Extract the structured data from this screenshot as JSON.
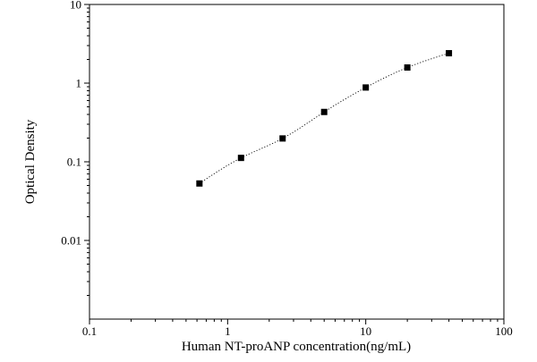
{
  "chart_data": {
    "type": "scatter",
    "title": "",
    "xlabel": "Human NT-proANP concentration(ng/mL)",
    "ylabel": "Optical Density",
    "x_scale": "log",
    "y_scale": "log",
    "xlim": [
      0.1,
      100
    ],
    "ylim": [
      0.001,
      10
    ],
    "x_ticks": [
      {
        "value": 0.1,
        "label": "0.1"
      },
      {
        "value": 1,
        "label": "1"
      },
      {
        "value": 10,
        "label": "10"
      },
      {
        "value": 100,
        "label": "100"
      }
    ],
    "y_ticks": [
      {
        "value": 10,
        "label": "10"
      },
      {
        "value": 1,
        "label": "1"
      },
      {
        "value": 0.1,
        "label": "0.1"
      },
      {
        "value": 0.01,
        "label": "0.01"
      }
    ],
    "grid": false,
    "legend": "none",
    "marker_color": "#000000",
    "fit_line": "dotted curve",
    "series": [
      {
        "x": [
          0.625,
          1.25,
          2.5,
          5,
          10,
          20,
          40
        ],
        "y": [
          0.053,
          0.112,
          0.198,
          0.43,
          0.88,
          1.58,
          2.4
        ]
      }
    ]
  }
}
